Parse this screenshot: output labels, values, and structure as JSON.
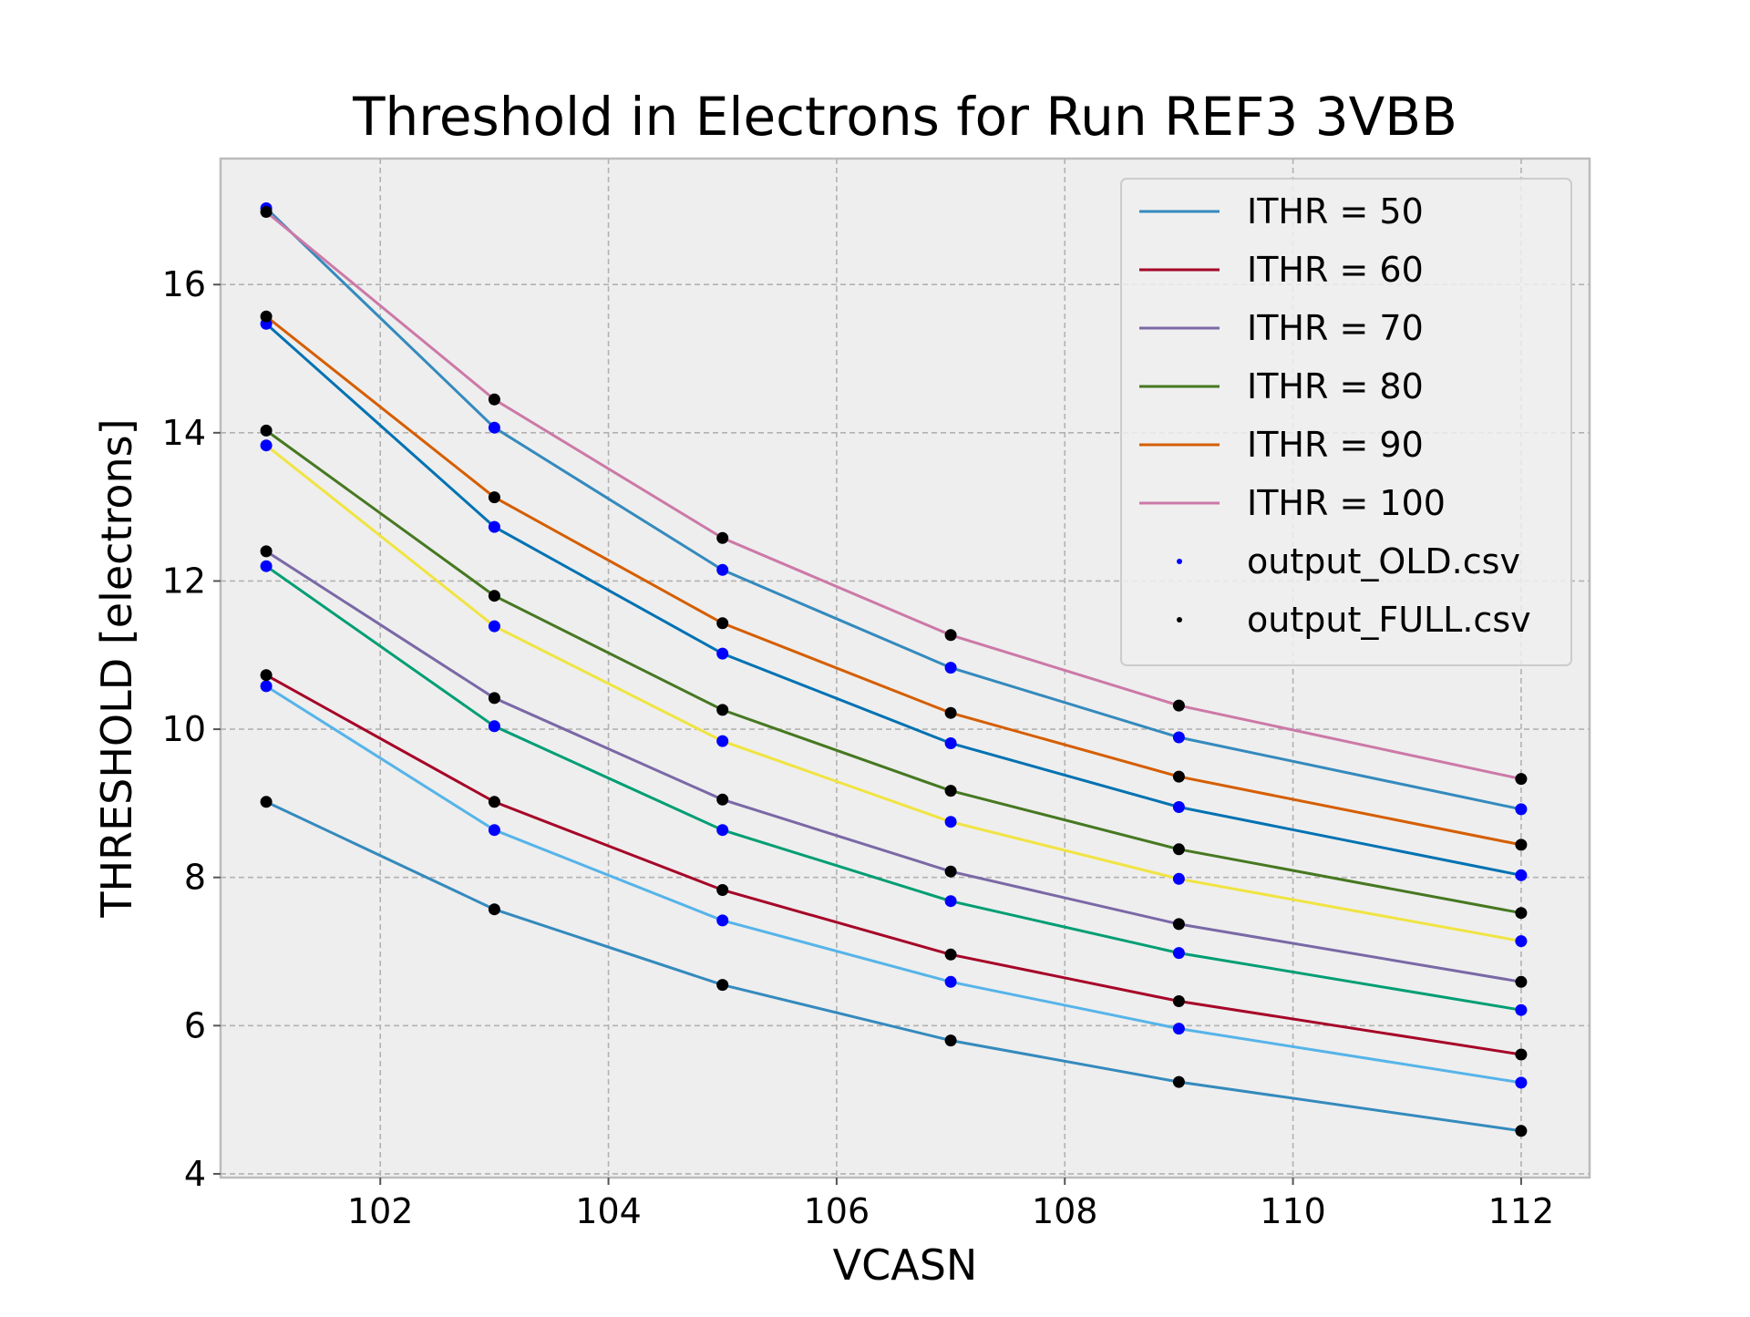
{
  "chart_data": {
    "type": "line",
    "title": "Threshold in Electrons for Run REF3 3VBB",
    "xlabel": "VCASN",
    "ylabel": "THRESHOLD [electrons]",
    "xlim": [
      100.6,
      112.6
    ],
    "ylim": [
      3.95,
      17.7
    ],
    "xticks": [
      102,
      104,
      106,
      108,
      110,
      112
    ],
    "yticks": [
      4,
      6,
      8,
      10,
      12,
      14,
      16
    ],
    "grid": true,
    "legend_position": "top-right",
    "x": [
      101,
      103,
      105,
      107,
      109,
      112
    ],
    "series": [
      {
        "name": "ITHR = 50",
        "color": "#348ABD",
        "values": [
          17.03,
          14.07,
          12.15,
          10.83,
          9.89,
          8.92
        ]
      },
      {
        "name": "ITHR = 60",
        "color": "#A60628",
        "values": [
          10.73,
          9.02,
          7.83,
          6.96,
          6.33,
          5.61
        ]
      },
      {
        "name": "ITHR = 70",
        "color": "#7A68A6",
        "values": [
          12.4,
          10.42,
          9.05,
          8.08,
          7.37,
          6.59
        ]
      },
      {
        "name": "ITHR = 80",
        "color": "#467821",
        "values": [
          14.03,
          11.8,
          10.26,
          9.17,
          8.38,
          7.52
        ]
      },
      {
        "name": "ITHR = 90",
        "color": "#D55E00",
        "values": [
          15.57,
          13.13,
          11.43,
          10.22,
          9.36,
          8.44
        ]
      },
      {
        "name": "ITHR = 100",
        "color": "#CC79A7",
        "values": [
          16.98,
          14.45,
          12.58,
          11.27,
          10.32,
          9.33
        ]
      },
      {
        "color": "#56B4E9",
        "values": [
          10.58,
          8.64,
          7.42,
          6.59,
          5.96,
          5.23
        ]
      },
      {
        "color": "#009E73",
        "values": [
          12.2,
          10.04,
          8.64,
          7.68,
          6.98,
          6.21
        ]
      },
      {
        "color": "#F0E442",
        "values": [
          13.83,
          11.39,
          9.84,
          8.75,
          7.98,
          7.14
        ]
      },
      {
        "color": "#0072B2",
        "values": [
          15.47,
          12.73,
          11.02,
          9.81,
          8.95,
          8.03
        ]
      },
      {
        "color": "#348ABD",
        "values": [
          9.02,
          7.57,
          6.55,
          5.8,
          5.24,
          4.58
        ]
      }
    ],
    "scatter_series": [
      {
        "name": "output_OLD.csv",
        "color": "#0000FF",
        "points": [
          [
            101,
            17.03
          ],
          [
            101,
            15.47
          ],
          [
            101,
            13.83
          ],
          [
            101,
            12.2
          ],
          [
            101,
            10.58
          ],
          [
            103,
            14.07
          ],
          [
            103,
            12.73
          ],
          [
            103,
            11.39
          ],
          [
            103,
            10.04
          ],
          [
            103,
            8.64
          ],
          [
            105,
            12.15
          ],
          [
            105,
            11.02
          ],
          [
            105,
            9.84
          ],
          [
            105,
            8.64
          ],
          [
            105,
            7.42
          ],
          [
            107,
            10.83
          ],
          [
            107,
            9.81
          ],
          [
            107,
            8.75
          ],
          [
            107,
            7.68
          ],
          [
            107,
            6.59
          ],
          [
            109,
            9.89
          ],
          [
            109,
            8.95
          ],
          [
            109,
            7.98
          ],
          [
            109,
            6.98
          ],
          [
            109,
            5.96
          ],
          [
            112,
            8.92
          ],
          [
            112,
            8.03
          ],
          [
            112,
            7.14
          ],
          [
            112,
            6.21
          ],
          [
            112,
            5.23
          ]
        ]
      },
      {
        "name": "output_FULL.csv",
        "color": "#000000",
        "points": [
          [
            101,
            16.98
          ],
          [
            101,
            15.57
          ],
          [
            101,
            14.03
          ],
          [
            101,
            12.4
          ],
          [
            101,
            10.73
          ],
          [
            101,
            9.02
          ],
          [
            103,
            14.45
          ],
          [
            103,
            13.13
          ],
          [
            103,
            11.8
          ],
          [
            103,
            10.42
          ],
          [
            103,
            9.02
          ],
          [
            103,
            7.57
          ],
          [
            105,
            12.58
          ],
          [
            105,
            11.43
          ],
          [
            105,
            10.26
          ],
          [
            105,
            9.05
          ],
          [
            105,
            7.83
          ],
          [
            105,
            6.55
          ],
          [
            107,
            11.27
          ],
          [
            107,
            10.22
          ],
          [
            107,
            9.17
          ],
          [
            107,
            8.08
          ],
          [
            107,
            6.96
          ],
          [
            107,
            5.8
          ],
          [
            109,
            10.32
          ],
          [
            109,
            9.36
          ],
          [
            109,
            8.38
          ],
          [
            109,
            7.37
          ],
          [
            109,
            6.33
          ],
          [
            109,
            5.24
          ],
          [
            112,
            9.33
          ],
          [
            112,
            8.44
          ],
          [
            112,
            7.52
          ],
          [
            112,
            6.59
          ],
          [
            112,
            5.61
          ],
          [
            112,
            4.58
          ]
        ]
      }
    ]
  }
}
